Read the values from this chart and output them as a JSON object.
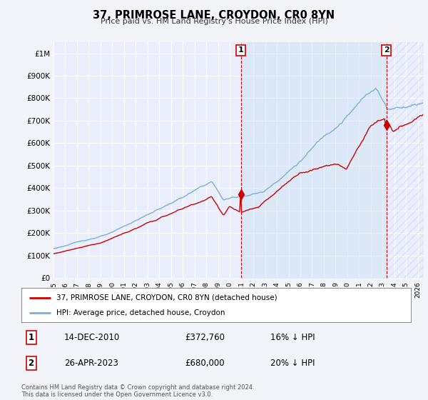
{
  "title": "37, PRIMROSE LANE, CROYDON, CR0 8YN",
  "subtitle": "Price paid vs. HM Land Registry's House Price Index (HPI)",
  "ytick_values": [
    0,
    100000,
    200000,
    300000,
    400000,
    500000,
    600000,
    700000,
    800000,
    900000,
    1000000
  ],
  "ylim": [
    0,
    1050000
  ],
  "xlim_start": 1995.0,
  "xlim_end": 2026.5,
  "bg_color": "#f2f4fa",
  "plot_bg": "#eaeefc",
  "grid_color": "#ffffff",
  "hpi_color": "#7ab0d8",
  "price_color": "#cc0000",
  "shade_color": "#d0e4f5",
  "annotation_box_color": "#cc0000",
  "legend_label_price": "37, PRIMROSE LANE, CROYDON, CR0 8YN (detached house)",
  "legend_label_hpi": "HPI: Average price, detached house, Croydon",
  "annotation1_label": "1",
  "annotation1_date": "14-DEC-2010",
  "annotation1_price": "£372,760",
  "annotation1_hpi": "16% ↓ HPI",
  "annotation2_label": "2",
  "annotation2_date": "26-APR-2023",
  "annotation2_price": "£680,000",
  "annotation2_hpi": "20% ↓ HPI",
  "footnote": "Contains HM Land Registry data © Crown copyright and database right 2024.\nThis data is licensed under the Open Government Licence v3.0.",
  "sale1_year": 2010.95,
  "sale1_price": 372760,
  "sale2_year": 2023.32,
  "sale2_price": 680000
}
